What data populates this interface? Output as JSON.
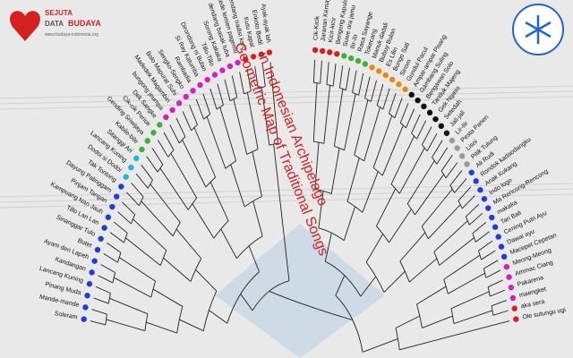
{
  "logo": {
    "line1": "SEJUTA",
    "line2": "DATA",
    "line3": "BUDAYA",
    "url": "www.budaya-indonesia.org"
  },
  "title": {
    "line1": "Geometric Map of Traditional Songs",
    "line2": "in Indonesian Archipelago"
  },
  "left_groups": [
    {
      "color": "#1f3fd0",
      "leaves": [
        "Soleram",
        "Mande-mande",
        "Pinang Muda",
        "Lancang Kuning",
        "Kandangan",
        "Ayam den Lapeh",
        "Butet",
        "Sinanggar Tulo",
        "Tillo Lan Lan",
        "Kampuang Nan Jauh",
        "Pinjam Tangan",
        "Dayung Palinggam",
        "Tak Tontong"
      ]
    },
    {
      "color": "#19b7d8",
      "leaves": [
        "Dodoi si Dodoi",
        "Lancang Kuning",
        "Sitanggi Ari"
      ]
    },
    {
      "color": "#3fae3a",
      "leaves": [
        "Kabile-bile",
        "Gending Sriwijaya",
        "Cik-cik Periok",
        "Dek Sangke"
      ]
    },
    {
      "color": "#d020c0",
      "leaves": [
        "bungong jeumpa",
        "Madedek Magambiri",
        "Bolo Mapurat Suhi",
        "Sengko-Sengko",
        "Rambadia",
        "Si Ray Katumba",
        "Dirondong ni Bulan",
        "Tillo-Tillo",
        "Sorong Kakaka",
        "dendang basak tuba",
        "kede lemien pagemu"
      ]
    },
    {
      "color": "#d52020",
      "leaves": [
        "dendang tradisi karo",
        "Kutu Kapal",
        "Enkoto Bedil",
        "Ayak-ayak lah"
      ]
    }
  ],
  "right_groups": [
    {
      "color": "#d52020",
      "leaves": [
        "Cik-Kicik",
        "Jaranan Kemayoran",
        "Kicir-kicir",
        "Bengong Kapulang"
      ]
    },
    {
      "color": "#3fae3a",
      "leaves": [
        "Suwe ora jamu",
        "Ilir-ilir",
        "Rasa Sayange",
        "Tokecang"
      ]
    },
    {
      "color": "#e58a18",
      "leaves": [
        "Manuk dadali",
        "Bubuy Bulan",
        "Es Lilin",
        "Bungo Sati",
        "Sinom",
        "Gundul Pacul"
      ]
    },
    {
      "color": "#111111",
      "leaves": [
        "Ampar-ampar Pisang",
        "Gambang Suling",
        "Bengawan Solo",
        "Tanduk Majeng",
        "Gek Ngaso",
        "Setedah",
        "Jali-jali"
      ]
    },
    {
      "color": "#999999",
      "leaves": [
        "Lir-ilir",
        "Pesta Panen",
        "Lisoi",
        "Pitik Tulung"
      ]
    },
    {
      "color": "#1f3fd0",
      "leaves": [
        "Ali Rudi",
        "Rondok kadaodangku",
        "Anak Kukang",
        "Indo logo",
        "Ma Rencong-Rencong",
        "makaka",
        "Tari Bali",
        "Cening Putri Ayu",
        "Dawai ayu",
        "Macepet Cepetan"
      ]
    },
    {
      "color": "#d020c0",
      "leaves": [
        "Meong-Meong",
        "Ammac Ciang",
        "Pakarena",
        "maengket"
      ]
    },
    {
      "color": "#d52020",
      "leaves": [
        "aka sera",
        "Ole sutungu ugi"
      ]
    }
  ]
}
